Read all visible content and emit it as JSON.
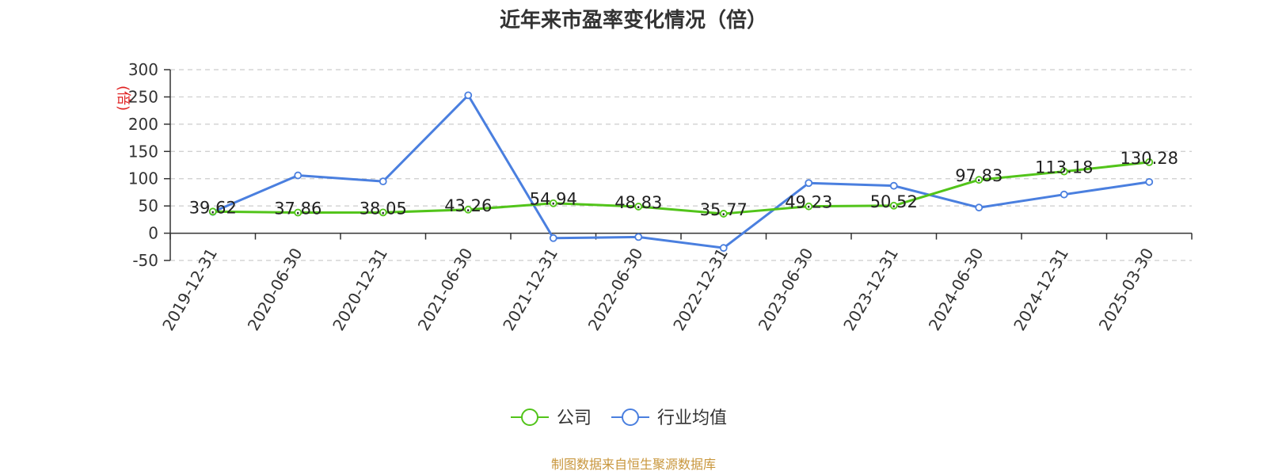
{
  "chart_data": {
    "type": "line",
    "title": "近年来市盈率变化情况（倍）",
    "ylabel": "(倍)",
    "ylim": [
      -50,
      300
    ],
    "yticks": [
      -50,
      0,
      50,
      100,
      150,
      200,
      250,
      300
    ],
    "categories": [
      "2019-12-31",
      "2020-06-30",
      "2020-12-31",
      "2021-06-30",
      "2021-12-31",
      "2022-06-30",
      "2022-12-31",
      "2023-06-30",
      "2023-12-31",
      "2024-06-30",
      "2024-12-31",
      "2025-03-30"
    ],
    "series": [
      {
        "name": "公司",
        "color": "#52c41a",
        "values": [
          39.62,
          37.86,
          38.05,
          43.26,
          54.94,
          48.83,
          35.77,
          49.23,
          50.52,
          97.83,
          113.18,
          130.28
        ],
        "labels": [
          "39.62",
          "37.86",
          "38.05",
          "43.26",
          "54.94",
          "48.83",
          "35.77",
          "49.23",
          "50.52",
          "97.83",
          "113.18",
          "130.28"
        ]
      },
      {
        "name": "行业均值",
        "color": "#4a7fdf",
        "values": [
          39,
          106,
          95,
          253,
          -9,
          -7,
          -27,
          92,
          87,
          47,
          71,
          94
        ]
      }
    ],
    "grid": true,
    "grid_style": "dashed",
    "legend_position": "bottom-center"
  },
  "source": {
    "text": "制图数据来自恒生聚源数据库",
    "color": "#c8963c"
  },
  "ylabel_color": "#e02020"
}
